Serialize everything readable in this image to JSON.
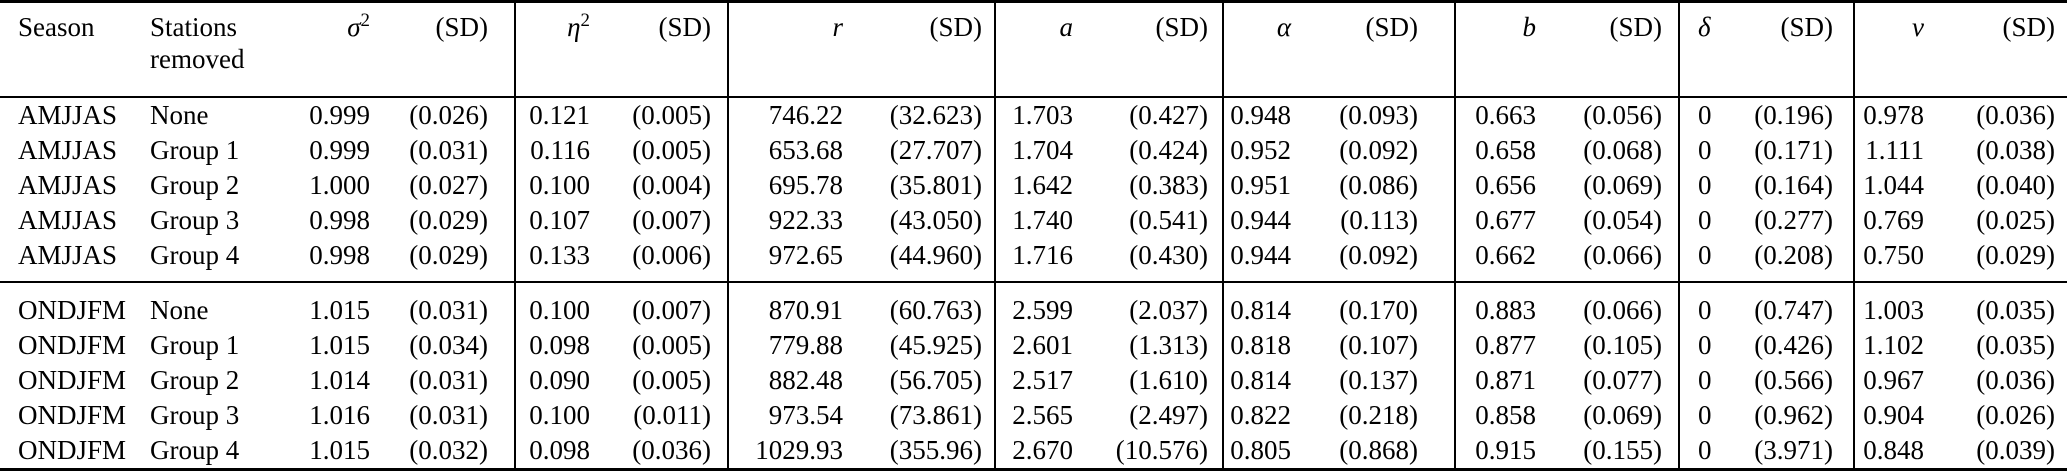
{
  "columns": [
    {
      "id": "season",
      "label": "Season"
    },
    {
      "id": "stations",
      "label": "Stations removed"
    },
    {
      "id": "sigma2",
      "symbol": "σ",
      "sup": "2",
      "sd": "(SD)"
    },
    {
      "id": "eta2",
      "symbol": "η",
      "sup": "2",
      "sd": "(SD)"
    },
    {
      "id": "r",
      "symbol": "r",
      "sd": "(SD)"
    },
    {
      "id": "a",
      "symbol": "a",
      "sd": "(SD)"
    },
    {
      "id": "alpha",
      "symbol": "α",
      "sd": "(SD)"
    },
    {
      "id": "b",
      "symbol": "b",
      "sd": "(SD)"
    },
    {
      "id": "delta",
      "symbol": "δ",
      "sd": "(SD)"
    },
    {
      "id": "nu",
      "symbol": "ν",
      "sd": "(SD)"
    }
  ],
  "groups": [
    {
      "season": "AMJJAS"
    },
    {
      "season": "ONDJFM"
    }
  ],
  "rows": [
    {
      "season": "AMJJAS",
      "stations": "None",
      "cells": [
        "0.999",
        "(0.026)",
        "0.121",
        "(0.005)",
        "746.22",
        "(32.623)",
        "1.703",
        "(0.427)",
        "0.948",
        "(0.093)",
        "0.663",
        "(0.056)",
        "0",
        "(0.196)",
        "0.978",
        "(0.036)"
      ]
    },
    {
      "season": "AMJJAS",
      "stations": "Group 1",
      "cells": [
        "0.999",
        "(0.031)",
        "0.116",
        "(0.005)",
        "653.68",
        "(27.707)",
        "1.704",
        "(0.424)",
        "0.952",
        "(0.092)",
        "0.658",
        "(0.068)",
        "0",
        "(0.171)",
        "1.111",
        "(0.038)"
      ]
    },
    {
      "season": "AMJJAS",
      "stations": "Group 2",
      "cells": [
        "1.000",
        "(0.027)",
        "0.100",
        "(0.004)",
        "695.78",
        "(35.801)",
        "1.642",
        "(0.383)",
        "0.951",
        "(0.086)",
        "0.656",
        "(0.069)",
        "0",
        "(0.164)",
        "1.044",
        "(0.040)"
      ]
    },
    {
      "season": "AMJJAS",
      "stations": "Group 3",
      "cells": [
        "0.998",
        "(0.029)",
        "0.107",
        "(0.007)",
        "922.33",
        "(43.050)",
        "1.740",
        "(0.541)",
        "0.944",
        "(0.113)",
        "0.677",
        "(0.054)",
        "0",
        "(0.277)",
        "0.769",
        "(0.025)"
      ]
    },
    {
      "season": "AMJJAS",
      "stations": "Group 4",
      "cells": [
        "0.998",
        "(0.029)",
        "0.133",
        "(0.006)",
        "972.65",
        "(44.960)",
        "1.716",
        "(0.430)",
        "0.944",
        "(0.092)",
        "0.662",
        "(0.066)",
        "0",
        "(0.208)",
        "0.750",
        "(0.029)"
      ]
    },
    {
      "season": "ONDJFM",
      "stations": "None",
      "cells": [
        "1.015",
        "(0.031)",
        "0.100",
        "(0.007)",
        "870.91",
        "(60.763)",
        "2.599",
        "(2.037)",
        "0.814",
        "(0.170)",
        "0.883",
        "(0.066)",
        "0",
        "(0.747)",
        "1.003",
        "(0.035)"
      ]
    },
    {
      "season": "ONDJFM",
      "stations": "Group 1",
      "cells": [
        "1.015",
        "(0.034)",
        "0.098",
        "(0.005)",
        "779.88",
        "(45.925)",
        "2.601",
        "(1.313)",
        "0.818",
        "(0.107)",
        "0.877",
        "(0.105)",
        "0",
        "(0.426)",
        "1.102",
        "(0.035)"
      ]
    },
    {
      "season": "ONDJFM",
      "stations": "Group 2",
      "cells": [
        "1.014",
        "(0.031)",
        "0.090",
        "(0.005)",
        "882.48",
        "(56.705)",
        "2.517",
        "(1.610)",
        "0.814",
        "(0.137)",
        "0.871",
        "(0.077)",
        "0",
        "(0.566)",
        "0.967",
        "(0.036)"
      ]
    },
    {
      "season": "ONDJFM",
      "stations": "Group 3",
      "cells": [
        "1.016",
        "(0.031)",
        "0.100",
        "(0.011)",
        "973.54",
        "(73.861)",
        "2.565",
        "(2.497)",
        "0.822",
        "(0.218)",
        "0.858",
        "(0.069)",
        "0",
        "(0.962)",
        "0.904",
        "(0.026)"
      ]
    },
    {
      "season": "ONDJFM",
      "stations": "Group 4",
      "cells": [
        "1.015",
        "(0.032)",
        "0.098",
        "(0.036)",
        "1029.93",
        "(355.96)",
        "2.670",
        "(10.576)",
        "0.805",
        "(0.868)",
        "0.915",
        "(0.155)",
        "0",
        "(3.971)",
        "0.848",
        "(0.039)"
      ]
    }
  ]
}
